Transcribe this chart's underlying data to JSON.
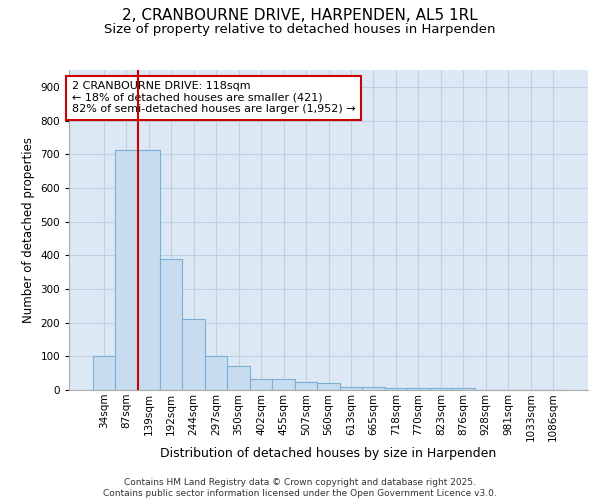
{
  "title1": "2, CRANBOURNE DRIVE, HARPENDEN, AL5 1RL",
  "title2": "Size of property relative to detached houses in Harpenden",
  "xlabel": "Distribution of detached houses by size in Harpenden",
  "ylabel": "Number of detached properties",
  "categories": [
    "34sqm",
    "87sqm",
    "139sqm",
    "192sqm",
    "244sqm",
    "297sqm",
    "350sqm",
    "402sqm",
    "455sqm",
    "507sqm",
    "560sqm",
    "613sqm",
    "665sqm",
    "718sqm",
    "770sqm",
    "823sqm",
    "876sqm",
    "928sqm",
    "981sqm",
    "1033sqm",
    "1086sqm"
  ],
  "values": [
    102,
    712,
    712,
    390,
    210,
    100,
    70,
    33,
    33,
    25,
    20,
    8,
    8,
    5,
    5,
    5,
    5,
    0,
    0,
    0,
    0
  ],
  "bar_color": "#c8dcf0",
  "bar_edge_color": "#7ab0d8",
  "vline_color": "#cc0000",
  "vline_x_idx": 1.5,
  "annotation_text": "2 CRANBOURNE DRIVE: 118sqm\n← 18% of detached houses are smaller (421)\n82% of semi-detached houses are larger (1,952) →",
  "annotation_box_color": "#cc0000",
  "ylim": [
    0,
    950
  ],
  "yticks": [
    0,
    100,
    200,
    300,
    400,
    500,
    600,
    700,
    800,
    900
  ],
  "grid_color": "#c0d0e4",
  "background_color": "#dce8f4",
  "footer": "Contains HM Land Registry data © Crown copyright and database right 2025.\nContains public sector information licensed under the Open Government Licence v3.0.",
  "title_fontsize": 11,
  "subtitle_fontsize": 9.5,
  "tick_fontsize": 7.5,
  "annotation_fontsize": 8,
  "ylabel_fontsize": 8.5,
  "xlabel_fontsize": 9
}
